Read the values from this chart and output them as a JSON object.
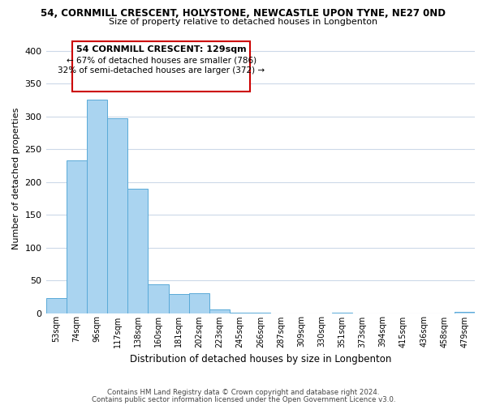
{
  "title_line1": "54, CORNMILL CRESCENT, HOLYSTONE, NEWCASTLE UPON TYNE, NE27 0ND",
  "title_line2": "Size of property relative to detached houses in Longbenton",
  "xlabel": "Distribution of detached houses by size in Longbenton",
  "ylabel": "Number of detached properties",
  "bar_labels": [
    "53sqm",
    "74sqm",
    "96sqm",
    "117sqm",
    "138sqm",
    "160sqm",
    "181sqm",
    "202sqm",
    "223sqm",
    "245sqm",
    "266sqm",
    "287sqm",
    "309sqm",
    "330sqm",
    "351sqm",
    "373sqm",
    "394sqm",
    "415sqm",
    "436sqm",
    "458sqm",
    "479sqm"
  ],
  "bar_values": [
    23,
    233,
    325,
    297,
    190,
    44,
    29,
    30,
    5,
    1,
    1,
    0,
    0,
    0,
    1,
    0,
    0,
    0,
    0,
    0,
    2
  ],
  "bar_color": "#aad4f0",
  "bar_edge_color": "#5aaad8",
  "ylim": [
    0,
    410
  ],
  "yticks": [
    0,
    50,
    100,
    150,
    200,
    250,
    300,
    350,
    400
  ],
  "annotation_title": "54 CORNMILL CRESCENT: 129sqm",
  "annotation_line1": "← 67% of detached houses are smaller (786)",
  "annotation_line2": "32% of semi-detached houses are larger (372) →",
  "annotation_box_color": "#ffffff",
  "annotation_box_edge": "#cc0000",
  "footnote_line1": "Contains HM Land Registry data © Crown copyright and database right 2024.",
  "footnote_line2": "Contains public sector information licensed under the Open Government Licence v3.0.",
  "background_color": "#ffffff",
  "grid_color": "#ccd9e8"
}
